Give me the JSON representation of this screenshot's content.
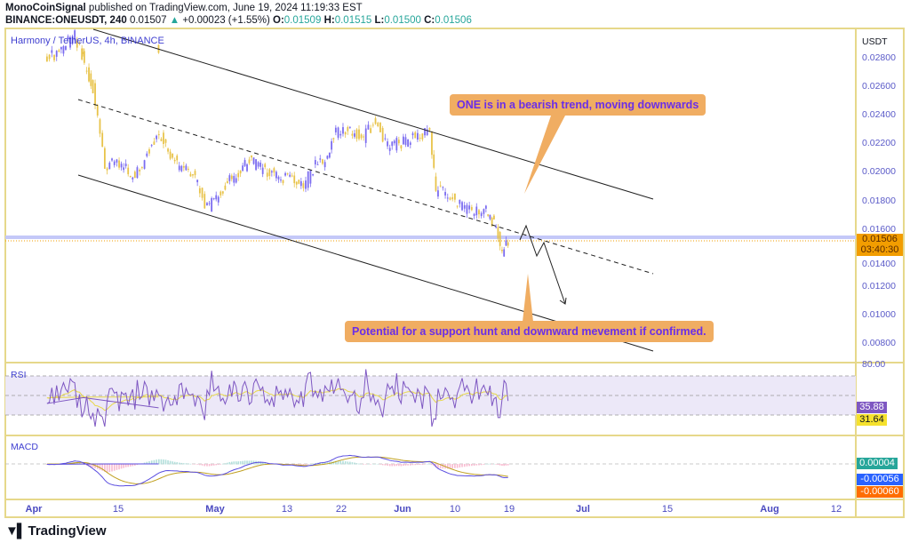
{
  "header": {
    "author": "MonoCoinSignal",
    "published": "published on TradingView.com, June 19, 2024 11:19:33 EST",
    "symbol": "BINANCE:ONEUSDT, 240",
    "last": "0.01507",
    "change": "+0.00023 (+1.55%)",
    "o_label": "O:",
    "o": "0.01509",
    "h_label": "H:",
    "h": "0.01515",
    "l_label": "L:",
    "l": "0.01500",
    "c_label": "C:",
    "c": "0.01506"
  },
  "pane_title": "Harmony / TetherUS, 4h, BINANCE",
  "price_axis": {
    "unit": "USDT",
    "ticks": [
      "0.02800",
      "0.02600",
      "0.02400",
      "0.02200",
      "0.02000",
      "0.01800",
      "0.01600",
      "0.01400",
      "0.01200",
      "0.01000",
      "0.00800"
    ],
    "current_price": "0.01506",
    "countdown": "03:40:30"
  },
  "time_axis": [
    {
      "label": "Apr",
      "bold": true
    },
    {
      "label": "15"
    },
    {
      "label": "May",
      "bold": true
    },
    {
      "label": "13"
    },
    {
      "label": "22"
    },
    {
      "label": "Jun",
      "bold": true
    },
    {
      "label": "10"
    },
    {
      "label": "19"
    },
    {
      "label": "Jul",
      "bold": true
    },
    {
      "label": "15"
    },
    {
      "label": "Aug",
      "bold": true
    },
    {
      "label": "12"
    }
  ],
  "annotations": {
    "top": "ONE is in a bearish trend, moving downwards",
    "bottom": "Potential for a support hunt and downward mevement if confirmed."
  },
  "rsi": {
    "label": "RSI",
    "axis_top": "80.00",
    "value": "35.88",
    "ma": "31.64",
    "levels": [
      70,
      50,
      30
    ]
  },
  "macd": {
    "label": "MACD",
    "hist": "0.00004",
    "macd": "-0.00056",
    "signal": "-0.00060"
  },
  "colors": {
    "up": "#7b6cf0",
    "down": "#e8c34a",
    "frame": "#e6d88a",
    "callout": "#f0ad62",
    "price_badge": "#f29d00",
    "rsi_badge": "#7e57c2",
    "rsi_ma_badge": "#f5e12d",
    "hist_badge": "#26a69a",
    "macd_badge": "#2962ff",
    "signal_badge": "#ff6d00"
  },
  "brand": "TradingView",
  "chart_data": {
    "type": "candlestick",
    "x_unit": "date 2024",
    "ylim": [
      0.007,
      0.029
    ],
    "closes": [
      [
        "03-30",
        0.0289
      ],
      [
        "04-03",
        0.0279
      ],
      [
        "04-05",
        0.0283
      ],
      [
        "04-08",
        0.0296
      ],
      [
        "04-10",
        0.027
      ],
      [
        "04-11",
        0.0258
      ],
      [
        "04-13",
        0.0202
      ],
      [
        "04-15",
        0.0208
      ],
      [
        "04-18",
        0.0196
      ],
      [
        "04-20",
        0.0212
      ],
      [
        "04-22",
        0.0227
      ],
      [
        "04-25",
        0.0205
      ],
      [
        "04-28",
        0.0196
      ],
      [
        "04-30",
        0.0174
      ],
      [
        "05-03",
        0.019
      ],
      [
        "05-07",
        0.0208
      ],
      [
        "05-10",
        0.0199
      ],
      [
        "05-13",
        0.0196
      ],
      [
        "05-16",
        0.019
      ],
      [
        "05-18",
        0.0205
      ],
      [
        "05-20",
        0.0208
      ],
      [
        "05-21",
        0.0227
      ],
      [
        "05-23",
        0.023
      ],
      [
        "05-26",
        0.0224
      ],
      [
        "05-28",
        0.0236
      ],
      [
        "05-30",
        0.0218
      ],
      [
        "06-02",
        0.0221
      ],
      [
        "06-04",
        0.0227
      ],
      [
        "06-06",
        0.0227
      ],
      [
        "06-07",
        0.0187
      ],
      [
        "06-09",
        0.0184
      ],
      [
        "06-11",
        0.0177
      ],
      [
        "06-13",
        0.0171
      ],
      [
        "06-15",
        0.0174
      ],
      [
        "06-16",
        0.0168
      ],
      [
        "06-17",
        0.0162
      ],
      [
        "06-18",
        0.0143
      ],
      [
        "06-19",
        0.01506
      ]
    ]
  }
}
